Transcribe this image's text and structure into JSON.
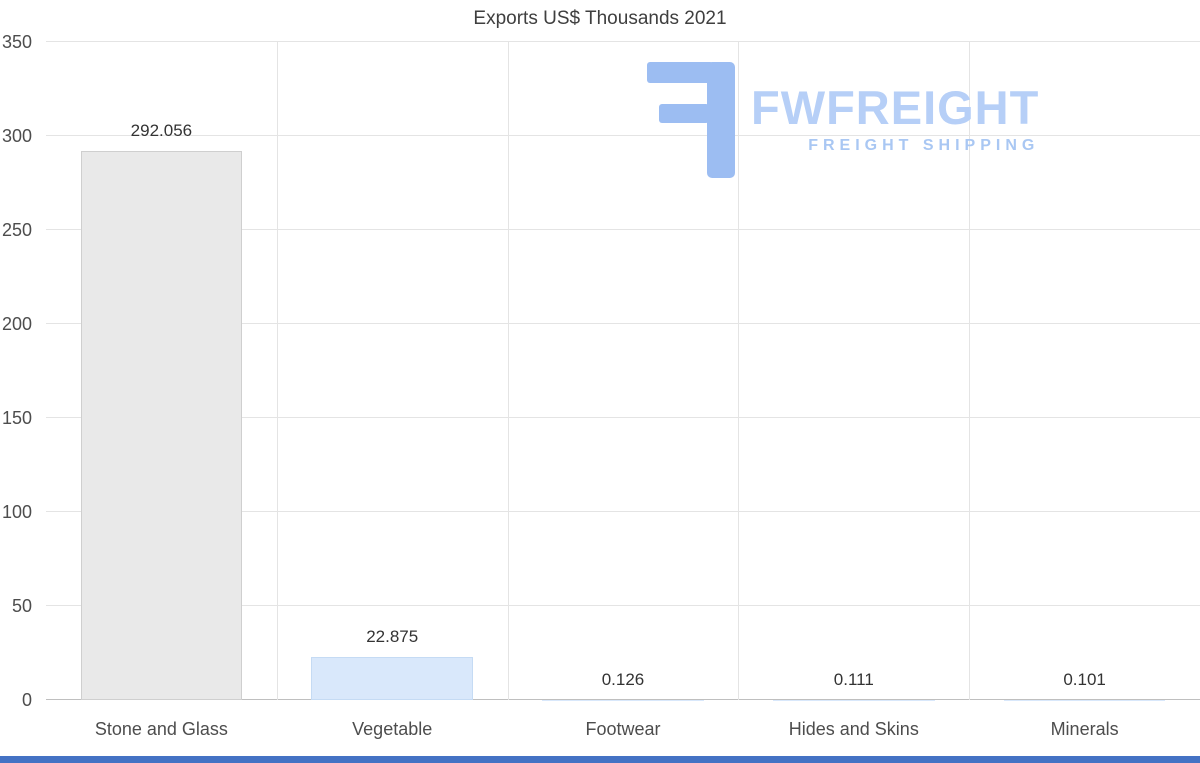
{
  "title": "Exports US$ Thousands 2021",
  "logo": {
    "brand": "FWFREIGHT",
    "tagline": "FREIGHT SHIPPING",
    "icon_color": "#9cbdf2",
    "brand_color": "#b6cff7",
    "tagline_color": "#a9c7f3"
  },
  "footer_color": "#4472c4",
  "chart_data": {
    "type": "bar",
    "title": "Exports US$ Thousands 2021",
    "categories": [
      "Stone and Glass",
      "Vegetable",
      "Footwear",
      "Hides and Skins",
      "Minerals"
    ],
    "values": [
      292.056,
      22.875,
      0.126,
      0.111,
      0.101
    ],
    "value_labels": [
      "292.056",
      "22.875",
      "0.126",
      "0.111",
      "0.101"
    ],
    "xlabel": "",
    "ylabel": "",
    "ylim": [
      0,
      350
    ],
    "yticks": [
      0,
      50,
      100,
      150,
      200,
      250,
      300,
      350
    ],
    "grid": true,
    "legend": "none",
    "bar_colors": [
      "#e9e9e9",
      "#d9e8fb",
      "#d9e8fb",
      "#d9e8fb",
      "#d9e8fb"
    ],
    "bar_border_colors": [
      "#cfcfcf",
      "#c5dbf4",
      "#c5dbf4",
      "#c5dbf4",
      "#c5dbf4"
    ]
  }
}
